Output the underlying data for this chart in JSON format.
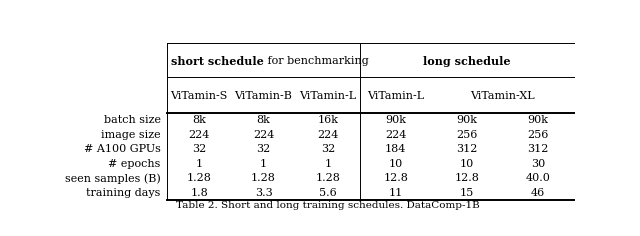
{
  "header_group1_bold": "short schedule",
  "header_group1_normal": " for benchmarking",
  "header_group2_bold": "long schedule",
  "col_headers_short": [
    "ViTamin-S",
    "ViTamin-B",
    "ViTamin-L"
  ],
  "col_headers_long": [
    "ViTamin-L",
    "ViTamin-XL"
  ],
  "row_labels": [
    "batch size",
    "image size",
    "# A100 GPUs",
    "# epochs",
    "seen samples (B)",
    "training days"
  ],
  "table_data": [
    [
      "8k",
      "8k",
      "16k",
      "90k",
      "90k",
      "90k"
    ],
    [
      "224",
      "224",
      "224",
      "224",
      "256",
      "256"
    ],
    [
      "32",
      "32",
      "32",
      "184",
      "312",
      "312"
    ],
    [
      "1",
      "1",
      "1",
      "10",
      "10",
      "30"
    ],
    [
      "1.28",
      "1.28",
      "1.28",
      "12.8",
      "12.8",
      "40.0"
    ],
    [
      "1.8",
      "3.3",
      "5.6",
      "11",
      "15",
      "46"
    ]
  ],
  "footer": "Table 2. Short and long training schedules. DataComp-1B",
  "bg_color": "#ffffff",
  "text_color": "#000000",
  "figsize": [
    6.4,
    2.36
  ],
  "dpi": 100,
  "font_size": 8.0,
  "font_family": "DejaVu Serif"
}
